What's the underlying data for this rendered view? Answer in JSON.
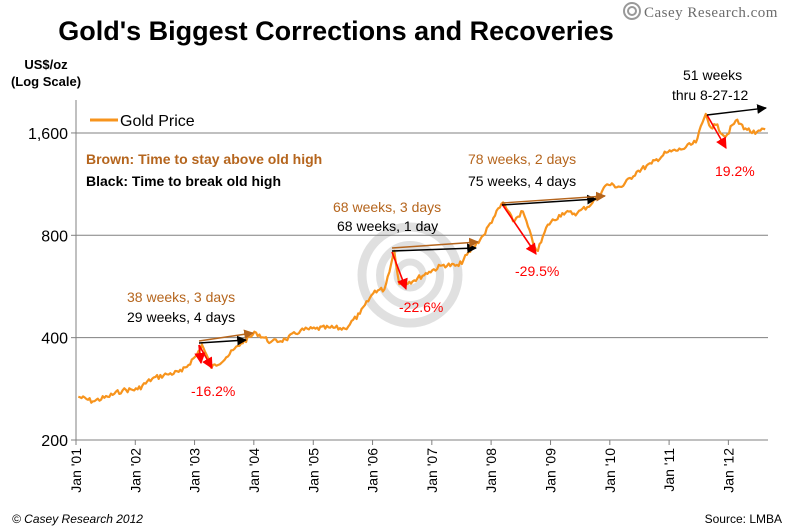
{
  "header": {
    "title": "Gold's Biggest Corrections and Recoveries",
    "logo_text": "Casey Research.com"
  },
  "footer": {
    "copyright": "© Casey Research 2012",
    "source": "Source: LMBA"
  },
  "colors": {
    "price_line": "#F7941D",
    "brown_text": "#B5651D",
    "correction_arrow": "#FF0000",
    "old_high_arrow": "#000000",
    "stay_above_arrow": "#B5651D",
    "correction_label": "#FF0000",
    "grid": "#808080"
  },
  "chart_data": {
    "type": "line",
    "title": "Gold's Biggest Corrections and Recoveries",
    "ylabel": "US$/oz (Log Scale)",
    "xlabel": "",
    "y_scale": "log",
    "ylim": [
      200,
      2000
    ],
    "y_ticks": [
      200,
      400,
      800,
      1600
    ],
    "y_tick_labels": [
      "200",
      "400",
      "800",
      "1,600"
    ],
    "xlim": [
      "2001-01-01",
      "2012-09-01"
    ],
    "x_tick_labels": [
      "Jan '01",
      "Jan '02",
      "Jan '03",
      "Jan '04",
      "Jan '05",
      "Jan '06",
      "Jan '07",
      "Jan '08",
      "Jan '09",
      "Jan '10",
      "Jan '11",
      "Jan '12"
    ],
    "grid": "horizontal",
    "legend": {
      "position": "top-left",
      "entries": [
        "Gold Price"
      ]
    },
    "series": [
      {
        "name": "Gold Price",
        "x": [
          "2001-01",
          "2001-04",
          "2001-07",
          "2001-10",
          "2002-01",
          "2002-04",
          "2002-07",
          "2002-10",
          "2003-01",
          "2003-02",
          "2003-04",
          "2003-07",
          "2003-10",
          "2004-01",
          "2004-04",
          "2004-07",
          "2004-10",
          "2005-01",
          "2005-04",
          "2005-07",
          "2005-10",
          "2006-01",
          "2006-03",
          "2006-05",
          "2006-06",
          "2006-09",
          "2006-12",
          "2007-03",
          "2007-06",
          "2007-09",
          "2007-11",
          "2008-01",
          "2008-03",
          "2008-05",
          "2008-07",
          "2008-09",
          "2008-10",
          "2008-12",
          "2009-03",
          "2009-06",
          "2009-09",
          "2009-12",
          "2010-03",
          "2010-06",
          "2010-09",
          "2010-12",
          "2011-03",
          "2011-06",
          "2011-08",
          "2011-09",
          "2011-10",
          "2011-12",
          "2012-02",
          "2012-04",
          "2012-06",
          "2012-08"
        ],
        "values": [
          268,
          260,
          268,
          280,
          282,
          303,
          312,
          318,
          356,
          382,
          326,
          350,
          385,
          414,
          388,
          395,
          420,
          425,
          428,
          425,
          470,
          550,
          555,
          720,
          575,
          590,
          625,
          655,
          650,
          740,
          800,
          900,
          1000,
          880,
          940,
          760,
          720,
          860,
          930,
          930,
          995,
          1130,
          1110,
          1230,
          1300,
          1400,
          1430,
          1500,
          1820,
          1660,
          1690,
          1560,
          1740,
          1650,
          1590,
          1640
        ]
      }
    ],
    "annotations": [
      {
        "text": "38 weeks, 3 days",
        "color": "brown"
      },
      {
        "text": "29 weeks, 4 days",
        "color": "black"
      },
      {
        "text": "-16.2%",
        "color": "red"
      },
      {
        "text": "68 weeks, 3 days",
        "color": "brown"
      },
      {
        "text": "68 weeks, 1 day",
        "color": "black"
      },
      {
        "text": "-22.6%",
        "color": "red"
      },
      {
        "text": "78 weeks, 2 days",
        "color": "brown"
      },
      {
        "text": "75 weeks, 4 days",
        "color": "black"
      },
      {
        "text": "-29.5%",
        "color": "red"
      },
      {
        "text": "51 weeks",
        "color": "black"
      },
      {
        "text": "thru 8-27-12",
        "color": "black"
      },
      {
        "text": "19.2%",
        "color": "red"
      },
      {
        "text": "Brown: Time to stay above old high",
        "color": "brown"
      },
      {
        "text": "Black: Time to break old high",
        "color": "black"
      }
    ]
  }
}
